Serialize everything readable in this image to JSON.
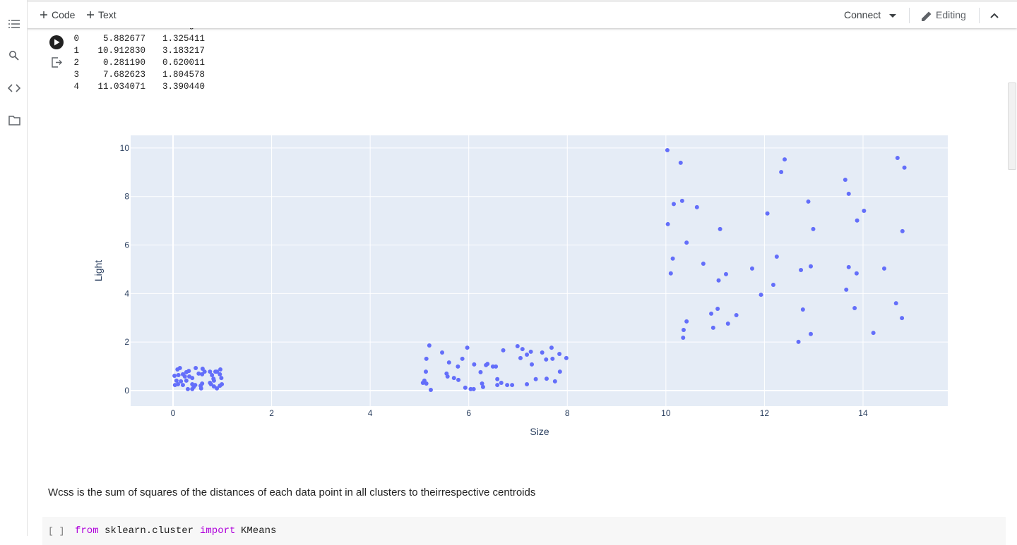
{
  "toolbar": {
    "add_code": "Code",
    "add_text": "Text",
    "connect": "Connect",
    "editing": "Editing"
  },
  "output_table": {
    "columns": [
      "Size",
      "Light"
    ],
    "rows": [
      [
        "0",
        "5.882677",
        "1.325411"
      ],
      [
        "1",
        "10.912830",
        "3.183217"
      ],
      [
        "2",
        "0.281190",
        "0.620011"
      ],
      [
        "3",
        "7.682623",
        "1.804578"
      ],
      [
        "4",
        "11.034071",
        "3.390440"
      ]
    ]
  },
  "chart_data": {
    "type": "scatter",
    "x_label": "Size",
    "y_label": "Light",
    "color": "#636efa",
    "grid": true,
    "xlim": [
      -0.86,
      15.72
    ],
    "ylim": [
      -0.64,
      10.52
    ],
    "xticks": [
      0,
      2,
      4,
      6,
      8,
      10,
      12,
      14
    ],
    "yticks": [
      0,
      2,
      4,
      6,
      8,
      10
    ],
    "x": [
      10.03,
      10.3,
      12.41,
      12.34,
      10.16,
      10.33,
      10.63,
      10.04,
      10.42,
      11.1,
      10.14,
      10.76,
      10.1,
      11.22,
      11.07,
      11.75,
      12.06,
      12.25,
      12.18,
      11.93,
      11.05,
      10.92,
      11.43,
      11.26,
      10.42,
      10.96,
      10.36,
      10.35,
      12.89,
      12.99,
      12.74,
      12.94,
      12.78,
      12.94,
      12.69,
      13.64,
      13.71,
      14.02,
      13.88,
      13.71,
      13.87,
      13.66,
      13.83,
      14.21,
      14.43,
      14.7,
      14.84,
      14.8,
      14.67,
      14.79,
      5.2,
      5.46,
      5.14,
      5.6,
      5.13,
      5.1,
      5.14,
      5.23,
      5.07,
      5.55,
      5.57,
      5.7,
      5.79,
      5.78,
      5.87,
      5.97,
      6.11,
      6.24,
      6.35,
      6.38,
      6.27,
      6.29,
      5.93,
      6.04,
      6.1,
      6.49,
      6.55,
      6.7,
      6.58,
      6.66,
      6.58,
      6.78,
      6.88,
      6.99,
      7.05,
      7.09,
      7.18,
      7.26,
      7.28,
      7.18,
      7.36,
      7.49,
      7.58,
      7.57,
      7.68,
      7.7,
      7.75,
      7.84,
      7.85,
      7.98,
      0.09,
      0.14,
      0.03,
      0.11,
      0.2,
      0.27,
      0.32,
      0.24,
      0.33,
      0.39,
      0.16,
      0.07,
      0.04,
      0.1,
      0.2,
      0.3,
      0.39,
      0.42,
      0.45,
      0.39,
      0.46,
      0.52,
      0.6,
      0.59,
      0.56,
      0.57,
      0.59,
      0.75,
      0.79,
      0.82,
      0.83,
      0.77,
      0.75,
      0.83,
      0.89,
      0.95,
      0.96,
      0.98,
      0.99,
      0.95,
      0.89,
      0.86,
      0.64,
      0.27
    ],
    "values": [
      9.91,
      9.39,
      9.53,
      9.01,
      7.69,
      7.82,
      7.56,
      6.86,
      6.1,
      6.66,
      5.44,
      5.23,
      4.83,
      4.8,
      4.54,
      5.03,
      7.3,
      5.52,
      4.36,
      3.95,
      3.37,
      3.17,
      3.11,
      2.76,
      2.85,
      2.59,
      2.5,
      2.18,
      7.79,
      6.66,
      4.97,
      5.12,
      3.34,
      2.33,
      2.01,
      8.69,
      8.11,
      7.41,
      7.01,
      5.09,
      4.83,
      4.16,
      3.4,
      2.38,
      5.03,
      9.59,
      9.19,
      6.57,
      3.6,
      2.99,
      1.86,
      1.57,
      1.31,
      1.16,
      0.78,
      0.41,
      0.29,
      0.03,
      0.32,
      0.7,
      0.58,
      0.52,
      0.44,
      0.99,
      1.31,
      1.77,
      1.08,
      0.76,
      1.05,
      1.1,
      0.29,
      0.15,
      0.12,
      0.06,
      0.06,
      0.99,
      0.99,
      1.66,
      0.47,
      0.32,
      0.23,
      0.23,
      0.23,
      1.83,
      1.34,
      1.71,
      1.48,
      1.6,
      1.08,
      0.26,
      0.47,
      1.57,
      0.49,
      1.28,
      1.77,
      1.31,
      0.38,
      1.51,
      0.78,
      1.34,
      0.87,
      0.93,
      0.61,
      0.64,
      0.67,
      0.76,
      0.81,
      0.58,
      0.58,
      0.52,
      0.38,
      0.41,
      0.23,
      0.26,
      0.23,
      0.06,
      0.06,
      0.15,
      0.23,
      0.26,
      0.93,
      0.7,
      0.9,
      0.67,
      0.2,
      0.09,
      0.29,
      0.78,
      0.64,
      0.49,
      0.41,
      0.26,
      0.32,
      0.17,
      0.78,
      0.67,
      0.87,
      0.52,
      0.26,
      0.2,
      0.09,
      0.78,
      0.78,
      0.41
    ]
  },
  "text_cell": "Wcss is the sum of squares of the distances of each data point in all clusters to theirrespective centroids",
  "code_cell": {
    "prompt": "[ ]",
    "keyword_from": "from",
    "module": "sklearn.cluster",
    "keyword_import": "import",
    "name": "KMeans"
  }
}
